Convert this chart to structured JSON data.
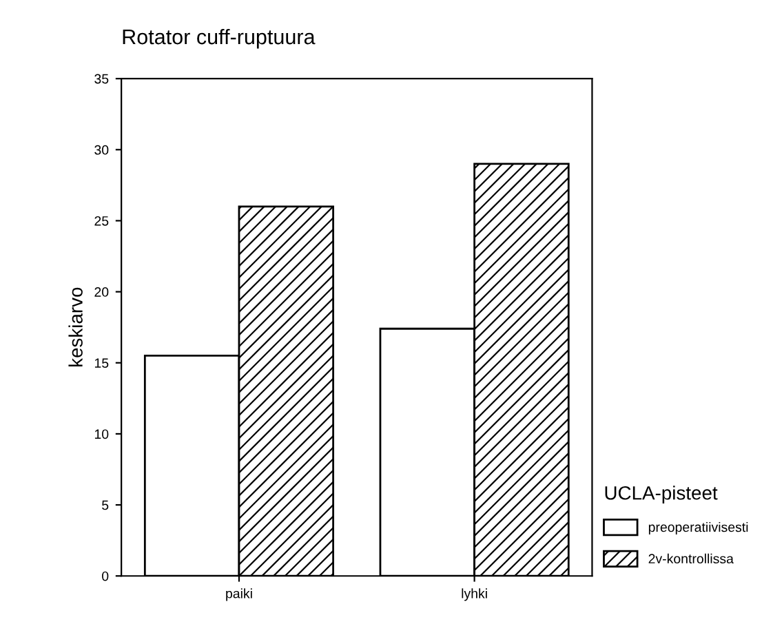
{
  "chart_data": {
    "type": "bar",
    "title": "Rotator cuff-ruptuura",
    "ylabel": "keskiarvo",
    "legend_title": "UCLA-pisteet",
    "categories": [
      "paiki",
      "lyhki"
    ],
    "series": [
      {
        "name": "preoperatiivisesti",
        "color": "#ffffff",
        "values": [
          15.5,
          17.4
        ]
      },
      {
        "name": "2v-kontrollissa",
        "color": "#000000",
        "values": [
          26.0,
          29.0
        ]
      }
    ],
    "ylim": [
      0,
      35
    ],
    "yticks": [
      0,
      5,
      10,
      15,
      20,
      25,
      30,
      35
    ],
    "grid": false,
    "legend": "right"
  }
}
